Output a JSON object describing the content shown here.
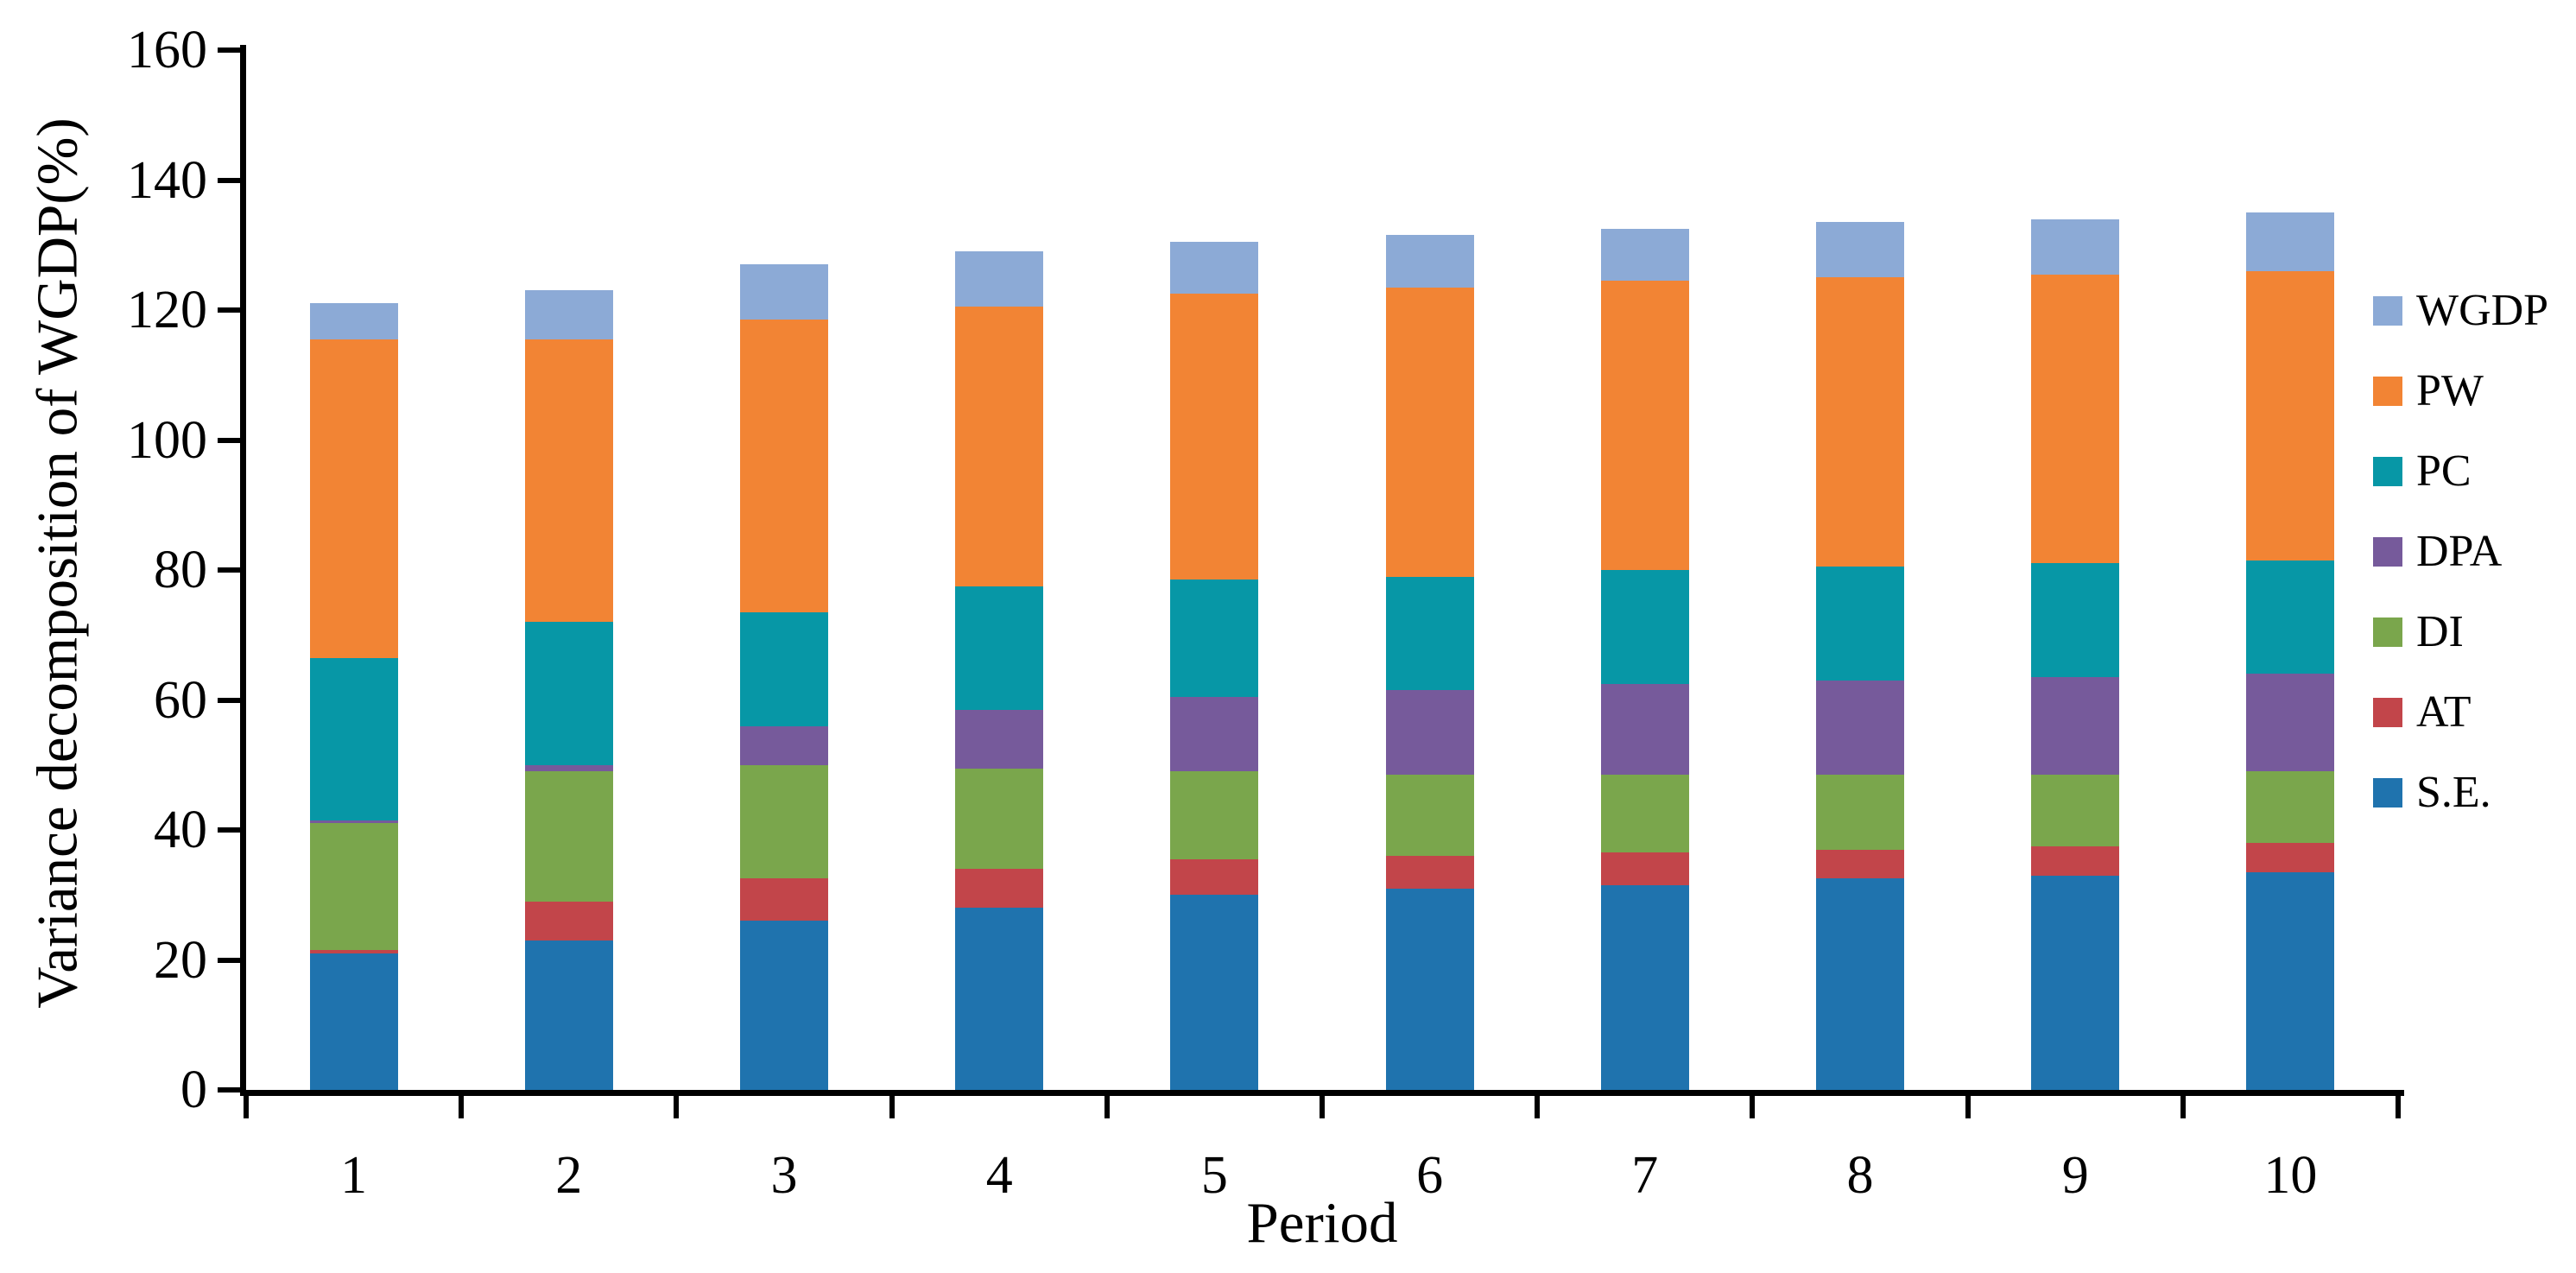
{
  "chart_data": {
    "type": "bar",
    "stacked": true,
    "title": "",
    "xlabel": "Period",
    "ylabel": "Variance decomposition of WGDP(%)",
    "categories": [
      "1",
      "2",
      "3",
      "4",
      "5",
      "6",
      "7",
      "8",
      "9",
      "10"
    ],
    "series": [
      {
        "name": "S.E.",
        "color": "#1f73ae",
        "values": [
          21,
          23,
          26,
          28,
          30,
          31,
          31.5,
          32.5,
          33,
          33.5
        ]
      },
      {
        "name": "AT",
        "color": "#c2454a",
        "values": [
          0.5,
          6,
          6.5,
          6,
          5.5,
          5,
          5,
          4.5,
          4.5,
          4.5
        ]
      },
      {
        "name": "DI",
        "color": "#7aa64c",
        "values": [
          19.5,
          20,
          17.5,
          15.5,
          13.5,
          12.5,
          12,
          11.5,
          11,
          11
        ]
      },
      {
        "name": "DPA",
        "color": "#765a9b",
        "values": [
          0.5,
          1,
          6,
          9,
          11.5,
          13,
          14,
          14.5,
          15,
          15
        ]
      },
      {
        "name": "PC",
        "color": "#0797a6",
        "values": [
          25,
          22,
          17.5,
          19,
          18,
          17.5,
          17.5,
          17.5,
          17.5,
          17.5
        ]
      },
      {
        "name": "PW",
        "color": "#f28434",
        "values": [
          49,
          43.5,
          45,
          43,
          44,
          44.5,
          44.5,
          44.5,
          44.5,
          44.5
        ]
      },
      {
        "name": "WGDP",
        "color": "#8caad6",
        "values": [
          5.5,
          7.5,
          8.5,
          8.5,
          8,
          8,
          8,
          8.5,
          8.5,
          9
        ]
      }
    ],
    "stack_totals": [
      121,
      123,
      127,
      129,
      130.5,
      131.5,
      132.5,
      133.5,
      134,
      135
    ],
    "ylim": [
      0,
      160
    ],
    "ytick_step": 20,
    "ytick_labels": [
      "0",
      "20",
      "40",
      "60",
      "80",
      "100",
      "120",
      "140",
      "160"
    ],
    "grid": false,
    "legend_position": "right",
    "legend_order_top_to_bottom": [
      "WGDP",
      "PW",
      "PC",
      "DPA",
      "DI",
      "AT",
      "S.E."
    ],
    "axis_color": "#000000",
    "text_color": "#000000"
  }
}
